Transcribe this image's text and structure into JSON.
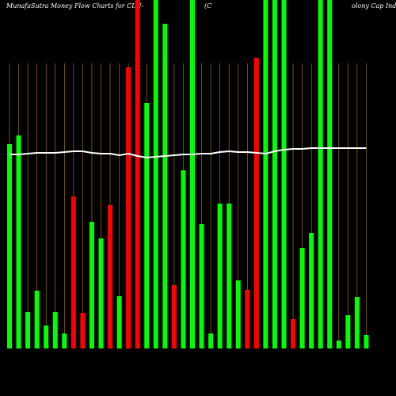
{
  "chart_data": {
    "type": "bar",
    "title": [
      "MunafaSutra  Money Flow  Charts for CLN-",
      "(C",
      "olony Cap Ind"
    ],
    "categories": [
      null,
      null,
      null,
      null,
      null,
      null,
      null,
      null,
      null,
      null,
      null,
      null,
      null,
      null,
      null,
      null,
      null,
      null,
      null,
      null,
      null,
      null,
      null,
      null,
      null,
      null,
      null,
      null,
      null,
      null,
      null,
      null,
      null,
      null,
      null,
      null,
      null,
      null,
      null,
      null
    ],
    "values": [
      258,
      269,
      46,
      73,
      29,
      46,
      19,
      192,
      45,
      160,
      139,
      181,
      66,
      355,
      440,
      310,
      440,
      410,
      80,
      225,
      440,
      157,
      19,
      183,
      183,
      86,
      74,
      367,
      440,
      440,
      440,
      37,
      127,
      146,
      440,
      440,
      10,
      42,
      65,
      17
    ],
    "colors": [
      "#00ff00",
      "#00ff00",
      "#00ff00",
      "#00ff00",
      "#00ff00",
      "#00ff00",
      "#00ff00",
      "#ff0000",
      "#ff0000",
      "#00ff00",
      "#00ff00",
      "#ff0000",
      "#00ff00",
      "#ff0000",
      "#ff0000",
      "#00ff00",
      "#00ff00",
      "#00ff00",
      "#ff0000",
      "#00ff00",
      "#00ff00",
      "#00ff00",
      "#00ff00",
      "#00ff00",
      "#00ff00",
      "#00ff00",
      "#ff0000",
      "#ff0000",
      "#00ff00",
      "#00ff00",
      "#00ff00",
      "#ff0000",
      "#00ff00",
      "#00ff00",
      "#00ff00",
      "#00ff00",
      "#00ff00",
      "#00ff00",
      "#00ff00",
      "#00ff00"
    ],
    "line_values": [
      245,
      245,
      246,
      247,
      247,
      247,
      248,
      249,
      249,
      247,
      246,
      246,
      244,
      246,
      243,
      241,
      242,
      243,
      244,
      245,
      245,
      246,
      246,
      248,
      249,
      248,
      248,
      247,
      246,
      249,
      251,
      252,
      252,
      253,
      253,
      253,
      253,
      253,
      253,
      253
    ],
    "line_color": "#ffffff",
    "grid_color": "#b8860b",
    "ylim": [
      0,
      440
    ]
  }
}
